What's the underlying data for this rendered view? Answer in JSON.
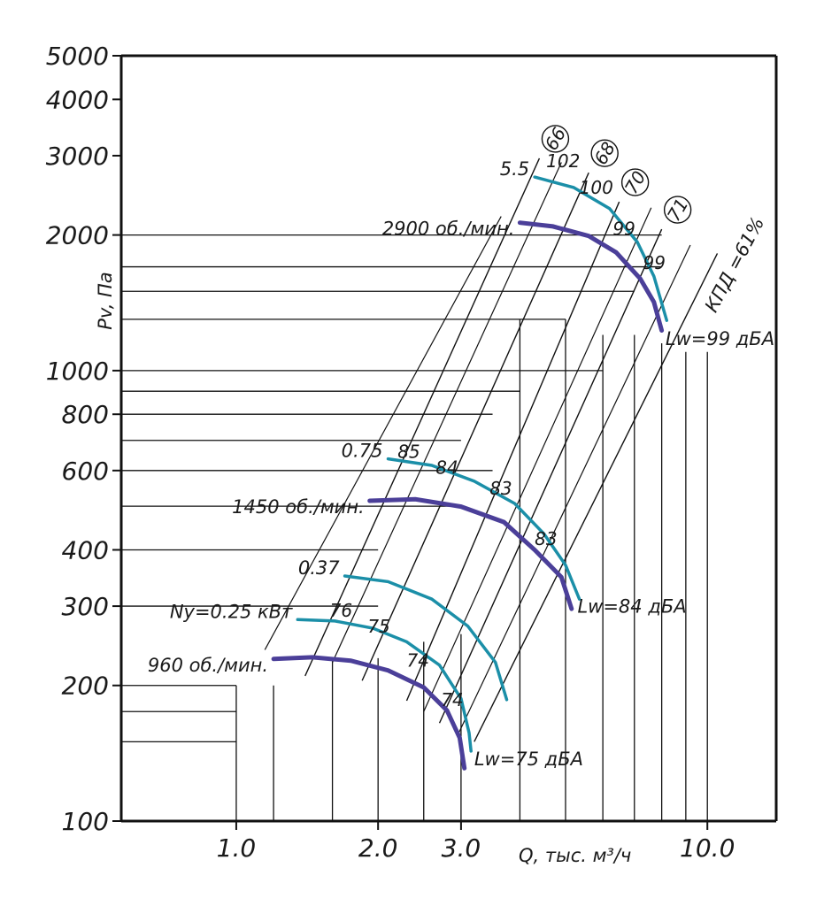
{
  "chart_data": {
    "type": "line",
    "title": "",
    "xlabel": "Q, тыс. м³/ч",
    "ylabel": "Pv, Па",
    "x_scale": "log",
    "y_scale": "log",
    "xlim": [
      0.57,
      14.0
    ],
    "ylim": [
      100,
      5000
    ],
    "x_ticks": [
      {
        "value": 1.0,
        "label": "1.0"
      },
      {
        "value": 2.0,
        "label": "2.0"
      },
      {
        "value": 3.0,
        "label": "3.0"
      },
      {
        "value": 10.0,
        "label": "10.0"
      }
    ],
    "y_ticks": [
      {
        "value": 100,
        "label": "100"
      },
      {
        "value": 200,
        "label": "200"
      },
      {
        "value": 300,
        "label": "300"
      },
      {
        "value": 400,
        "label": "400"
      },
      {
        "value": 600,
        "label": "600"
      },
      {
        "value": 800,
        "label": "800"
      },
      {
        "value": 1000,
        "label": "1000"
      },
      {
        "value": 2000,
        "label": "2000"
      },
      {
        "value": 3000,
        "label": "3000"
      },
      {
        "value": 4000,
        "label": "4000"
      },
      {
        "value": 5000,
        "label": "5000"
      }
    ],
    "grid_x": [
      1.0,
      1.2,
      1.6,
      2.0,
      2.5,
      3.0,
      4.0,
      5.0,
      6.0,
      7.0,
      8.0,
      9.0,
      10.0
    ],
    "grid_y": [
      150,
      175,
      200,
      500,
      700,
      900,
      1300,
      1500,
      1700,
      2000
    ],
    "grid_y_x_start": [
      1.0,
      1.0,
      1.0,
      3.0,
      3.0,
      4.0,
      5.0,
      7.0,
      8.0,
      8.0
    ],
    "curves": [
      {
        "label": "960 об./мин.",
        "kind": "performance",
        "points": [
          [
            1.2,
            229
          ],
          [
            1.45,
            231
          ],
          [
            1.75,
            227
          ],
          [
            2.1,
            216
          ],
          [
            2.5,
            198
          ],
          [
            2.8,
            176
          ],
          [
            2.98,
            153
          ],
          [
            3.05,
            131
          ]
        ]
      },
      {
        "label": "Ny=0.25 кВт",
        "kind": "power",
        "points": [
          [
            1.35,
            280
          ],
          [
            1.62,
            278
          ],
          [
            1.95,
            268
          ],
          [
            2.3,
            250
          ],
          [
            2.7,
            222
          ],
          [
            3.0,
            187
          ],
          [
            3.12,
            157
          ],
          [
            3.15,
            143
          ]
        ]
      },
      {
        "label": "0.37",
        "kind": "power",
        "points": [
          [
            1.7,
            350
          ],
          [
            2.1,
            340
          ],
          [
            2.6,
            311
          ],
          [
            3.1,
            271
          ],
          [
            3.55,
            225
          ],
          [
            3.75,
            186
          ]
        ]
      },
      {
        "label": "1450 об./мин.",
        "kind": "performance",
        "points": [
          [
            1.92,
            514
          ],
          [
            2.4,
            518
          ],
          [
            3.0,
            499
          ],
          [
            3.7,
            461
          ],
          [
            4.3,
            400
          ],
          [
            4.9,
            348
          ],
          [
            5.15,
            296
          ]
        ]
      },
      {
        "label": "0.75",
        "kind": "power",
        "points": [
          [
            2.1,
            637
          ],
          [
            2.6,
            616
          ],
          [
            3.2,
            568
          ],
          [
            3.9,
            507
          ],
          [
            4.5,
            434
          ],
          [
            5.0,
            370
          ],
          [
            5.35,
            311
          ]
        ]
      },
      {
        "label": "2900 об./мин.",
        "kind": "performance",
        "points": [
          [
            4.0,
            2130
          ],
          [
            4.7,
            2090
          ],
          [
            5.6,
            1990
          ],
          [
            6.4,
            1830
          ],
          [
            7.2,
            1600
          ],
          [
            7.7,
            1420
          ],
          [
            8.0,
            1228
          ]
        ]
      },
      {
        "label": "5.5",
        "kind": "power",
        "points": [
          [
            4.3,
            2690
          ],
          [
            5.2,
            2550
          ],
          [
            6.2,
            2290
          ],
          [
            7.1,
            1930
          ],
          [
            7.7,
            1620
          ],
          [
            8.2,
            1292
          ]
        ]
      }
    ],
    "efficiency_lines": [
      {
        "label": "66",
        "points": [
          [
            1.4,
            210
          ],
          [
            4.4,
            2960
          ]
        ]
      },
      {
        "label": "68",
        "points": [
          [
            1.85,
            205
          ],
          [
            5.6,
            2750
          ]
        ]
      },
      {
        "label": "70",
        "points": [
          [
            2.3,
            185
          ],
          [
            6.5,
            2370
          ]
        ]
      },
      {
        "label": "71",
        "points": [
          [
            2.7,
            165
          ],
          [
            8.0,
            2060
          ]
        ]
      },
      {
        "label": "КПД =61%",
        "points": [
          [
            3.2,
            150
          ],
          [
            10.5,
            1820
          ]
        ]
      }
    ],
    "annotations": [
      {
        "text": "102",
        "x": 4.55,
        "y": 2830
      },
      {
        "text": "100",
        "x": 5.35,
        "y": 2470
      },
      {
        "text": "99",
        "x": 6.3,
        "y": 2000
      },
      {
        "text": "99",
        "x": 7.3,
        "y": 1680
      },
      {
        "text": "85",
        "x": 2.2,
        "y": 640
      },
      {
        "text": "84",
        "x": 2.65,
        "y": 590
      },
      {
        "text": "83",
        "x": 3.45,
        "y": 530
      },
      {
        "text": "83",
        "x": 4.3,
        "y": 410
      },
      {
        "text": "76",
        "x": 1.58,
        "y": 284
      },
      {
        "text": "75",
        "x": 1.9,
        "y": 262
      },
      {
        "text": "74",
        "x": 2.3,
        "y": 220
      },
      {
        "text": "74",
        "x": 2.72,
        "y": 180
      },
      {
        "text": "Lw=99 дБА",
        "x": 8.15,
        "y": 1140
      },
      {
        "text": "Lw=84 дБА",
        "x": 5.3,
        "y": 290
      },
      {
        "text": "Lw=75 дБА",
        "x": 3.2,
        "y": 133
      }
    ],
    "colors": {
      "performance": "#4b3f99",
      "power": "#1b8fa8",
      "axis": "#111111",
      "grid": "#111111"
    }
  }
}
